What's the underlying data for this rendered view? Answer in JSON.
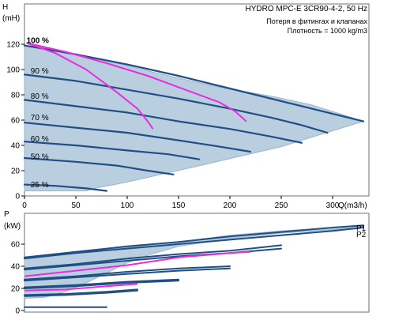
{
  "title": "HYDRO MPC-E 3CR90-4-2, 50 Hz",
  "notes": [
    "Потеря в фитингах и клапанах",
    "Плотность = 1000 kg/m3"
  ],
  "colors": {
    "region_fill": "#b9cfe0",
    "region_stroke": "#9db6cb",
    "curve": "#1f4f84",
    "system_curve": "#e62ee0",
    "axis": "#000000",
    "frame": "#6f6f6f"
  },
  "chart_data": [
    {
      "type": "line",
      "name": "head-chart",
      "ylabel": "H",
      "yunit": "(mH)",
      "xlabel": "Q(m3/h)",
      "xlim": [
        0,
        320
      ],
      "ylim": [
        0,
        130
      ],
      "xticks": [
        0,
        50,
        100,
        150,
        200,
        250,
        300
      ],
      "yticks": [
        0,
        20,
        40,
        60,
        80,
        100,
        120
      ],
      "speed_labels": [
        {
          "label": "100 %",
          "q": 2,
          "h": 121
        },
        {
          "label": "90 %",
          "q": 6,
          "h": 97
        },
        {
          "label": "80 %",
          "q": 6,
          "h": 77
        },
        {
          "label": "70 %",
          "q": 6,
          "h": 60
        },
        {
          "label": "60 %",
          "q": 6,
          "h": 43
        },
        {
          "label": "50 %",
          "q": 6,
          "h": 29
        },
        {
          "label": "25 %",
          "q": 6,
          "h": 7
        }
      ],
      "region": [
        [
          0,
          119
        ],
        [
          18,
          118
        ],
        [
          70,
          109
        ],
        [
          130,
          97
        ],
        [
          190,
          86
        ],
        [
          240,
          79
        ],
        [
          280,
          72
        ],
        [
          315,
          63
        ],
        [
          330,
          59
        ],
        [
          250,
          39
        ],
        [
          160,
          22
        ],
        [
          100,
          11
        ],
        [
          68,
          6
        ],
        [
          60,
          4
        ],
        [
          0,
          4
        ]
      ],
      "series": [
        {
          "points": [
            [
              0,
              119
            ],
            [
              50,
              112
            ],
            [
              100,
              104
            ],
            [
              150,
              95
            ],
            [
              200,
              85
            ],
            [
              250,
              75
            ],
            [
              290,
              67
            ],
            [
              330,
              59
            ]
          ]
        },
        {
          "points": [
            [
              0,
              96
            ],
            [
              50,
              91
            ],
            [
              100,
              84
            ],
            [
              150,
              77
            ],
            [
              200,
              69
            ],
            [
              240,
              62
            ],
            [
              270,
              56
            ],
            [
              295,
              50
            ]
          ]
        },
        {
          "points": [
            [
              0,
              76
            ],
            [
              50,
              71
            ],
            [
              100,
              66
            ],
            [
              150,
              59
            ],
            [
              200,
              53
            ],
            [
              240,
              47
            ],
            [
              270,
              42
            ]
          ]
        },
        {
          "points": [
            [
              0,
              58
            ],
            [
              50,
              54
            ],
            [
              100,
              50
            ],
            [
              150,
              44
            ],
            [
              190,
              39
            ],
            [
              220,
              35
            ]
          ]
        },
        {
          "points": [
            [
              0,
              43
            ],
            [
              50,
              40
            ],
            [
              100,
              36
            ],
            [
              140,
              33
            ],
            [
              170,
              29
            ]
          ]
        },
        {
          "points": [
            [
              0,
              30
            ],
            [
              50,
              27
            ],
            [
              90,
              24
            ],
            [
              120,
              20
            ],
            [
              145,
              17
            ]
          ]
        },
        {
          "points": [
            [
              0,
              9
            ],
            [
              30,
              8
            ],
            [
              60,
              6
            ],
            [
              80,
              4
            ]
          ]
        }
      ],
      "system_curves": [
        {
          "points": [
            [
              2,
              121
            ],
            [
              30,
              113
            ],
            [
              60,
              100
            ],
            [
              90,
              82
            ],
            [
              110,
              69
            ],
            [
              120,
              59
            ],
            [
              125,
              53
            ]
          ]
        },
        {
          "points": [
            [
              2,
              121
            ],
            [
              40,
              114
            ],
            [
              80,
              105
            ],
            [
              120,
              95
            ],
            [
              160,
              83
            ],
            [
              190,
              74
            ],
            [
              205,
              67
            ],
            [
              216,
              59
            ]
          ]
        }
      ]
    },
    {
      "type": "line",
      "name": "power-chart",
      "ylabel": "P",
      "yunit": "(kW)",
      "xlim": [
        0,
        320
      ],
      "ylim": [
        0,
        80
      ],
      "yticks": [
        0,
        20,
        40,
        60
      ],
      "series_labels": [
        "P1",
        "P2"
      ],
      "region": [
        [
          0,
          48
        ],
        [
          50,
          53
        ],
        [
          100,
          57
        ],
        [
          150,
          62
        ],
        [
          200,
          68
        ],
        [
          250,
          72
        ],
        [
          300,
          75
        ],
        [
          330,
          77
        ],
        [
          330,
          75
        ],
        [
          300,
          73
        ],
        [
          250,
          70
        ],
        [
          200,
          65
        ],
        [
          150,
          58
        ],
        [
          120,
          50
        ],
        [
          100,
          43
        ],
        [
          80,
          34
        ],
        [
          60,
          25
        ],
        [
          40,
          17
        ],
        [
          20,
          12
        ],
        [
          0,
          11
        ]
      ],
      "series": [
        {
          "points": [
            [
              0,
              48
            ],
            [
              50,
              53
            ],
            [
              100,
              58
            ],
            [
              150,
              62
            ],
            [
              200,
              67
            ],
            [
              250,
              71
            ],
            [
              300,
              75
            ],
            [
              330,
              77
            ]
          ]
        },
        {
          "points": [
            [
              0,
              47
            ],
            [
              50,
              52
            ],
            [
              100,
              56
            ],
            [
              150,
              60
            ],
            [
              200,
              64
            ],
            [
              250,
              68
            ],
            [
              300,
              72
            ],
            [
              330,
              75
            ]
          ]
        },
        {
          "points": [
            [
              0,
              38
            ],
            [
              50,
              42
            ],
            [
              100,
              47
            ],
            [
              150,
              51
            ],
            [
              200,
              54
            ],
            [
              250,
              59
            ]
          ]
        },
        {
          "points": [
            [
              0,
              37
            ],
            [
              50,
              41
            ],
            [
              100,
              45
            ],
            [
              150,
              49
            ],
            [
              200,
              52
            ],
            [
              250,
              56
            ]
          ]
        },
        {
          "points": [
            [
              0,
              28
            ],
            [
              50,
              31
            ],
            [
              100,
              35
            ],
            [
              150,
              38
            ],
            [
              200,
              40
            ]
          ]
        },
        {
          "points": [
            [
              0,
              27
            ],
            [
              50,
              30
            ],
            [
              100,
              33
            ],
            [
              150,
              36
            ],
            [
              200,
              38
            ]
          ]
        },
        {
          "points": [
            [
              0,
              21
            ],
            [
              50,
              23
            ],
            [
              100,
              26
            ],
            [
              150,
              28
            ]
          ]
        },
        {
          "points": [
            [
              0,
              20
            ],
            [
              50,
              22
            ],
            [
              100,
              25
            ],
            [
              150,
              27
            ]
          ]
        },
        {
          "points": [
            [
              0,
              14
            ],
            [
              40,
              15
            ],
            [
              80,
              17
            ],
            [
              110,
              19
            ]
          ]
        },
        {
          "points": [
            [
              0,
              13
            ],
            [
              40,
              14
            ],
            [
              80,
              16
            ],
            [
              110,
              18
            ]
          ]
        },
        {
          "points": [
            [
              0,
              3
            ],
            [
              40,
              3
            ],
            [
              80,
              3
            ]
          ]
        }
      ],
      "system_curves": [
        {
          "points": [
            [
              0,
              31
            ],
            [
              50,
              36
            ],
            [
              100,
              41
            ],
            [
              150,
              48
            ],
            [
              200,
              52
            ],
            [
              220,
              53
            ]
          ]
        },
        {
          "points": [
            [
              0,
              18
            ],
            [
              40,
              19
            ],
            [
              80,
              22
            ],
            [
              110,
              24
            ]
          ]
        }
      ]
    }
  ]
}
